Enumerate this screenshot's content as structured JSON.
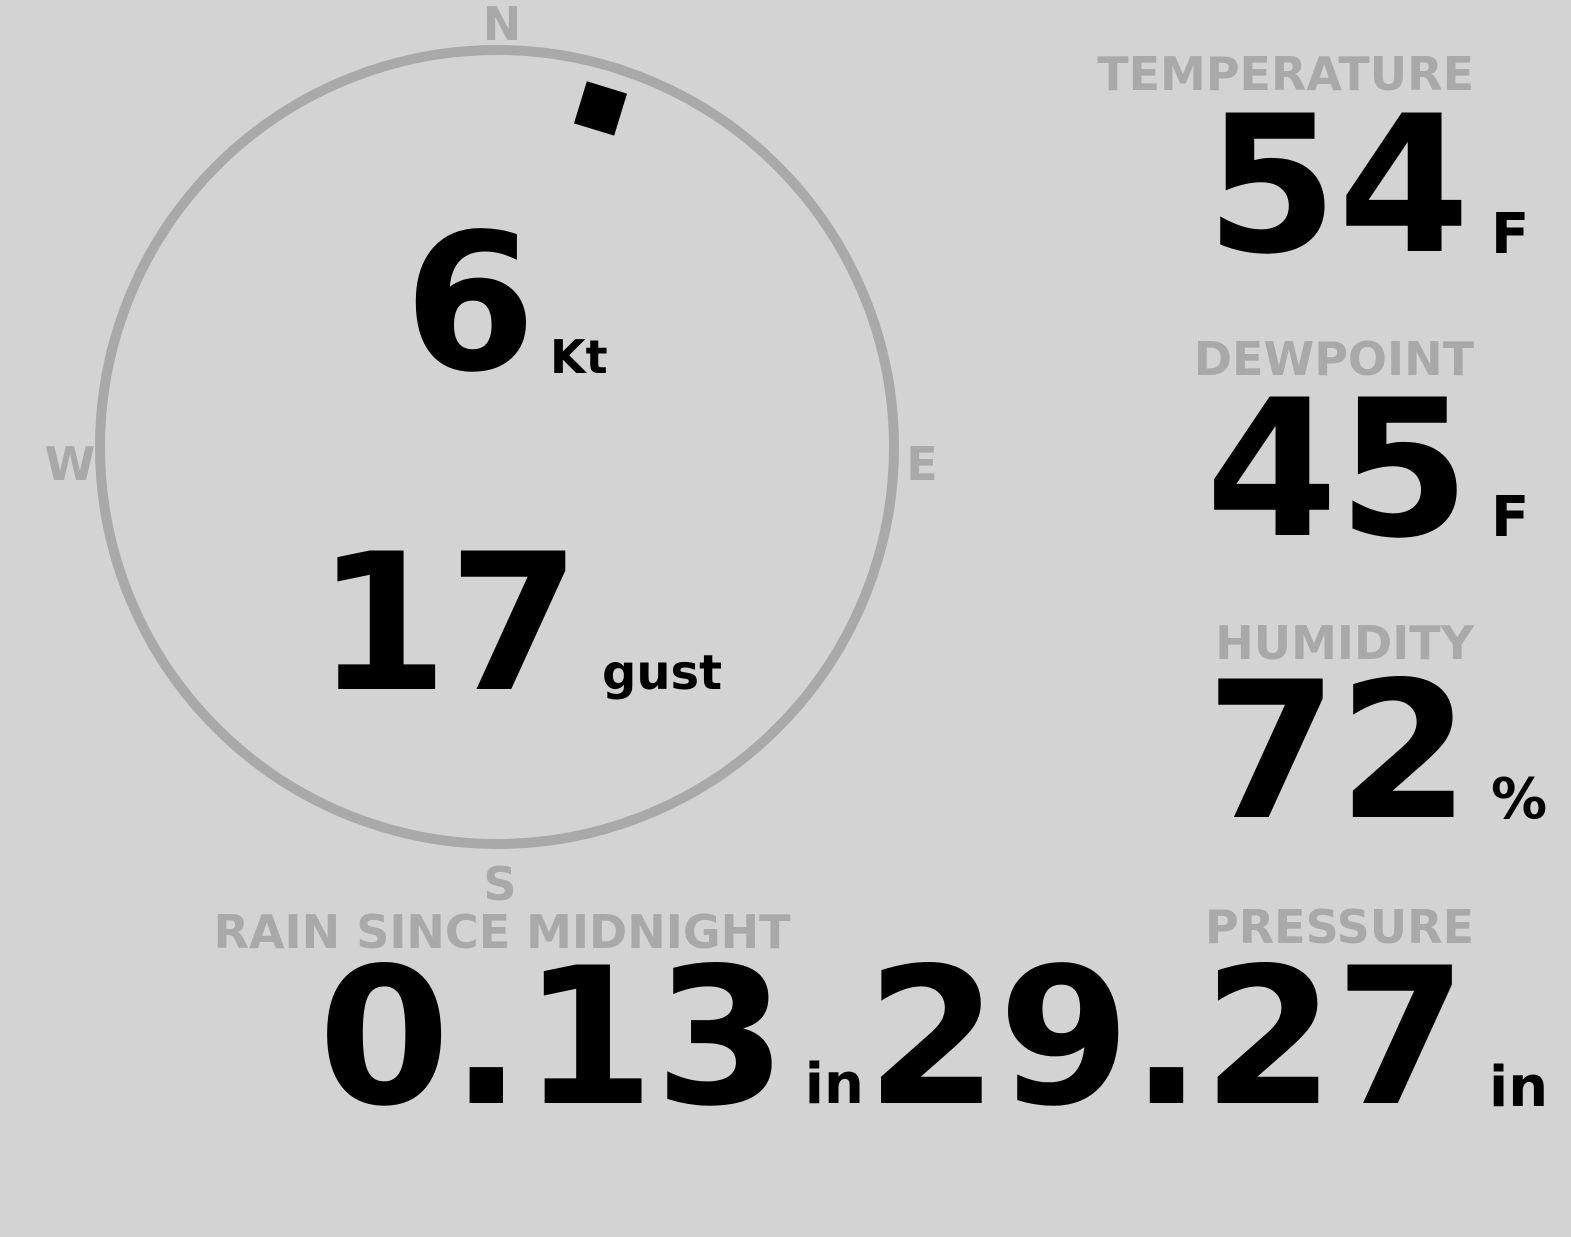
{
  "wind": {
    "speed": "6",
    "speed_unit": "Kt",
    "gust": "17",
    "gust_unit": "gust",
    "direction_deg": 17,
    "compass": {
      "n": "N",
      "e": "E",
      "s": "S",
      "w": "W"
    }
  },
  "temperature": {
    "label": "TEMPERATURE",
    "value": "54",
    "unit": "F"
  },
  "dewpoint": {
    "label": "DEWPOINT",
    "value": "45",
    "unit": "F"
  },
  "humidity": {
    "label": "HUMIDITY",
    "value": "72",
    "unit": "%"
  },
  "pressure": {
    "label": "PRESSURE",
    "value": "29.27",
    "unit": "in"
  },
  "rain": {
    "label": "RAIN SINCE MIDNIGHT",
    "value": "0.13",
    "unit": "in"
  },
  "colors": {
    "background": "#d3d3d3",
    "label": "#a9a9a9",
    "value": "#000000"
  }
}
